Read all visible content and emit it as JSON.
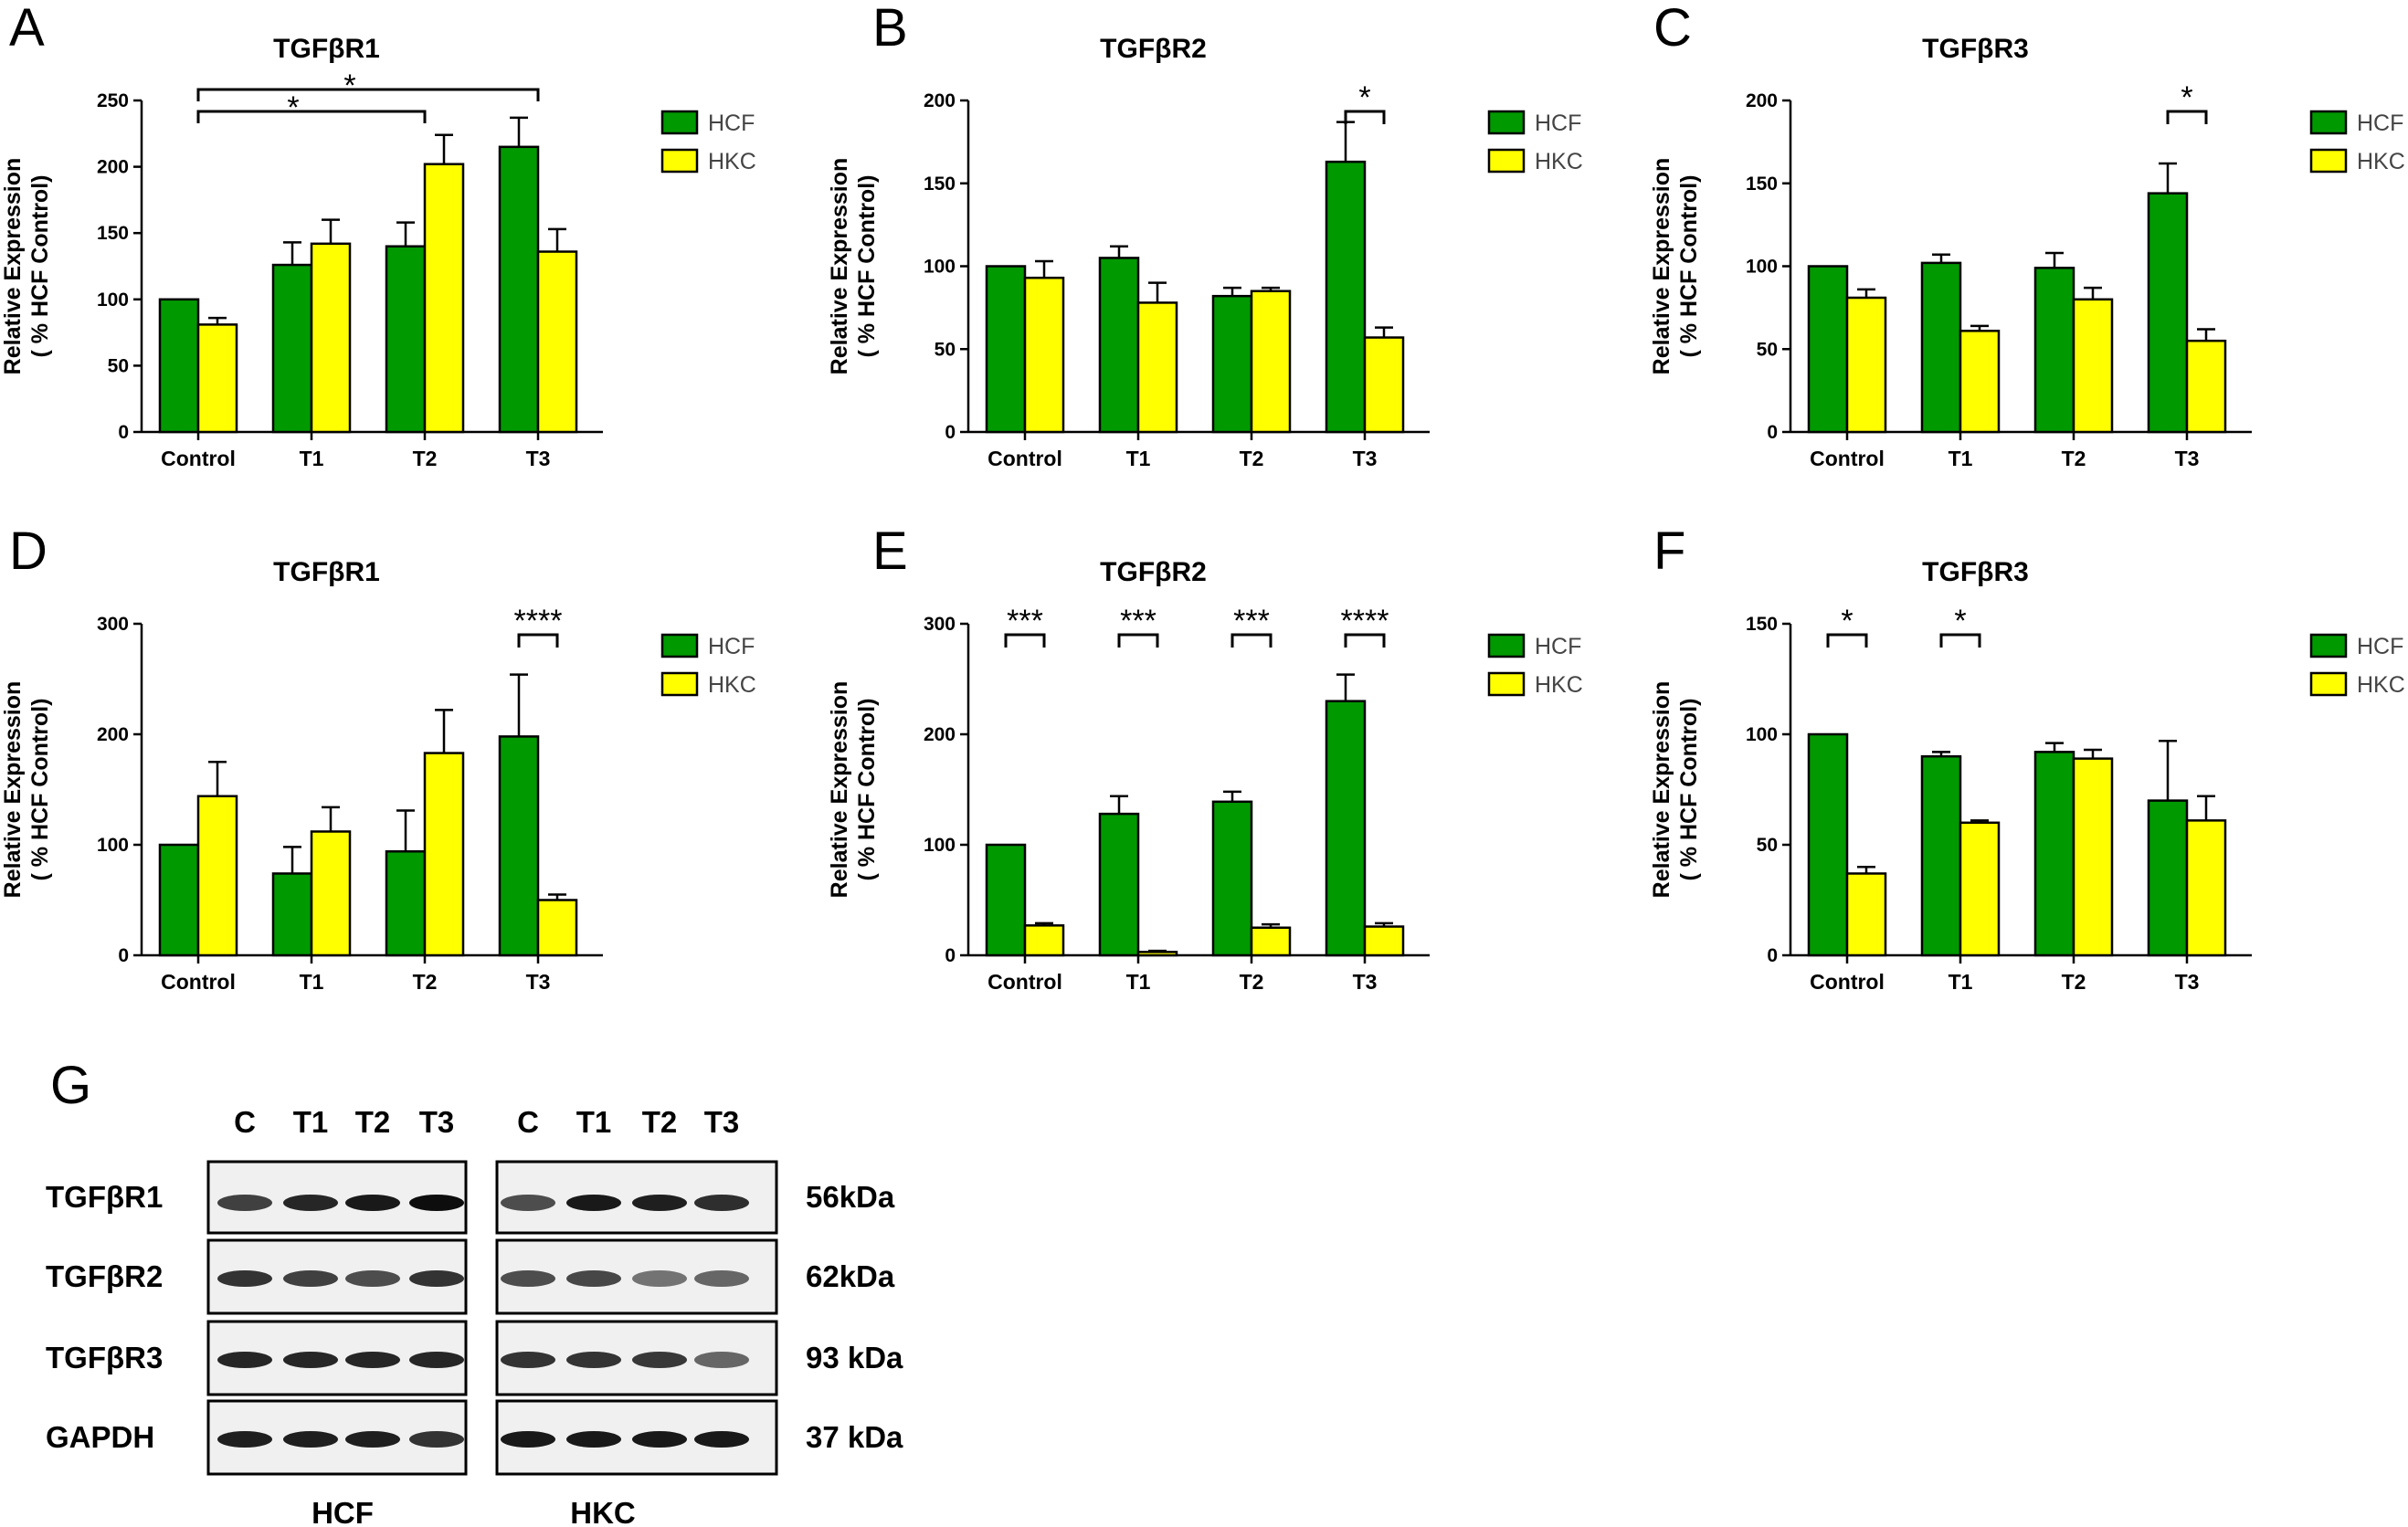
{
  "colors": {
    "hcf": "#009900",
    "hkc": "#ffff00",
    "bar_stroke": "#000000"
  },
  "chart_data": [
    {
      "panel": "A",
      "type": "bar",
      "title": "TGFβR1",
      "ylabel": "Relative Expression ( % HCF Control)",
      "categories": [
        "Control",
        "T1",
        "T2",
        "T3"
      ],
      "ylim": [
        0,
        250
      ],
      "yticks": [
        0,
        50,
        100,
        150,
        200,
        250
      ],
      "series": [
        {
          "name": "HCF",
          "values": [
            100,
            126,
            140,
            215
          ],
          "errors": [
            0,
            17,
            18,
            22
          ]
        },
        {
          "name": "HKC",
          "values": [
            81,
            142,
            202,
            136
          ],
          "errors": [
            5,
            18,
            22,
            17
          ]
        }
      ],
      "legend": "top-right",
      "annotations": [
        {
          "type": "wide",
          "from": 0,
          "to": 3,
          "label": "*"
        },
        {
          "type": "wide",
          "from": 0,
          "to": 2,
          "label": "*"
        }
      ]
    },
    {
      "panel": "B",
      "type": "bar",
      "title": "TGFβR2",
      "ylabel": "Relative Expression ( % HCF Control)",
      "categories": [
        "Control",
        "T1",
        "T2",
        "T3"
      ],
      "ylim": [
        0,
        200
      ],
      "yticks": [
        0,
        50,
        100,
        150,
        200
      ],
      "series": [
        {
          "name": "HCF",
          "values": [
            100,
            105,
            82,
            163
          ],
          "errors": [
            0,
            7,
            5,
            24
          ]
        },
        {
          "name": "HKC",
          "values": [
            93,
            78,
            85,
            57
          ],
          "errors": [
            10,
            12,
            2,
            6
          ]
        }
      ],
      "legend": "top-right",
      "annotations": [
        {
          "type": "pair",
          "group": 3,
          "label": "*"
        }
      ]
    },
    {
      "panel": "C",
      "type": "bar",
      "title": "TGFβR3",
      "ylabel": "Relative Expression ( % HCF Control)",
      "categories": [
        "Control",
        "T1",
        "T2",
        "T3"
      ],
      "ylim": [
        0,
        200
      ],
      "yticks": [
        0,
        50,
        100,
        150,
        200
      ],
      "series": [
        {
          "name": "HCF",
          "values": [
            100,
            102,
            99,
            144
          ],
          "errors": [
            0,
            5,
            9,
            18
          ]
        },
        {
          "name": "HKC",
          "values": [
            81,
            61,
            80,
            55
          ],
          "errors": [
            5,
            3,
            7,
            7
          ]
        }
      ],
      "legend": "top-right",
      "annotations": [
        {
          "type": "pair",
          "group": 3,
          "label": "*"
        }
      ]
    },
    {
      "panel": "D",
      "type": "bar",
      "title": "TGFβR1",
      "ylabel": "Relative Expression ( % HCF Control)",
      "categories": [
        "Control",
        "T1",
        "T2",
        "T3"
      ],
      "ylim": [
        0,
        300
      ],
      "yticks": [
        0,
        100,
        200,
        300
      ],
      "series": [
        {
          "name": "HCF",
          "values": [
            100,
            74,
            94,
            198
          ],
          "errors": [
            0,
            24,
            37,
            56
          ]
        },
        {
          "name": "HKC",
          "values": [
            144,
            112,
            183,
            50
          ],
          "errors": [
            31,
            22,
            39,
            5
          ]
        }
      ],
      "legend": "top-right",
      "annotations": [
        {
          "type": "pair",
          "group": 3,
          "label": "****"
        }
      ]
    },
    {
      "panel": "E",
      "type": "bar",
      "title": "TGFβR2",
      "ylabel": "Relative Expression ( % HCF Control)",
      "categories": [
        "Control",
        "T1",
        "T2",
        "T3"
      ],
      "ylim": [
        0,
        300
      ],
      "yticks": [
        0,
        100,
        200,
        300
      ],
      "series": [
        {
          "name": "HCF",
          "values": [
            100,
            128,
            139,
            230
          ],
          "errors": [
            0,
            16,
            9,
            24
          ]
        },
        {
          "name": "HKC",
          "values": [
            27,
            3,
            25,
            26
          ],
          "errors": [
            2,
            1,
            3,
            3
          ]
        }
      ],
      "legend": "top-right",
      "annotations": [
        {
          "type": "pair",
          "group": 0,
          "label": "***"
        },
        {
          "type": "pair",
          "group": 1,
          "label": "***"
        },
        {
          "type": "pair",
          "group": 2,
          "label": "***"
        },
        {
          "type": "pair",
          "group": 3,
          "label": "****"
        }
      ]
    },
    {
      "panel": "F",
      "type": "bar",
      "title": "TGFβR3",
      "ylabel": "Relative Expression ( % HCF Control)",
      "categories": [
        "Control",
        "T1",
        "T2",
        "T3"
      ],
      "ylim": [
        0,
        150
      ],
      "yticks": [
        0,
        50,
        100,
        150
      ],
      "series": [
        {
          "name": "HCF",
          "values": [
            100,
            90,
            92,
            70
          ],
          "errors": [
            0,
            2,
            4,
            27
          ]
        },
        {
          "name": "HKC",
          "values": [
            37,
            60,
            89,
            61
          ],
          "errors": [
            3,
            1,
            4,
            11
          ]
        }
      ],
      "legend": "top-right",
      "annotations": [
        {
          "type": "pair",
          "group": 0,
          "label": "*"
        },
        {
          "type": "pair",
          "group": 1,
          "label": "*"
        }
      ]
    }
  ],
  "western_blot": {
    "panel": "G",
    "lanes": [
      "C",
      "T1",
      "T2",
      "T3"
    ],
    "groups": [
      "HCF",
      "HKC"
    ],
    "rows": [
      {
        "label": "TGFβR1",
        "size": "56kDa"
      },
      {
        "label": "TGFβR2",
        "size": "62kDa"
      },
      {
        "label": "TGFβR3",
        "size": "93 kDa"
      },
      {
        "label": "GAPDH",
        "size": "37 kDa"
      }
    ]
  }
}
